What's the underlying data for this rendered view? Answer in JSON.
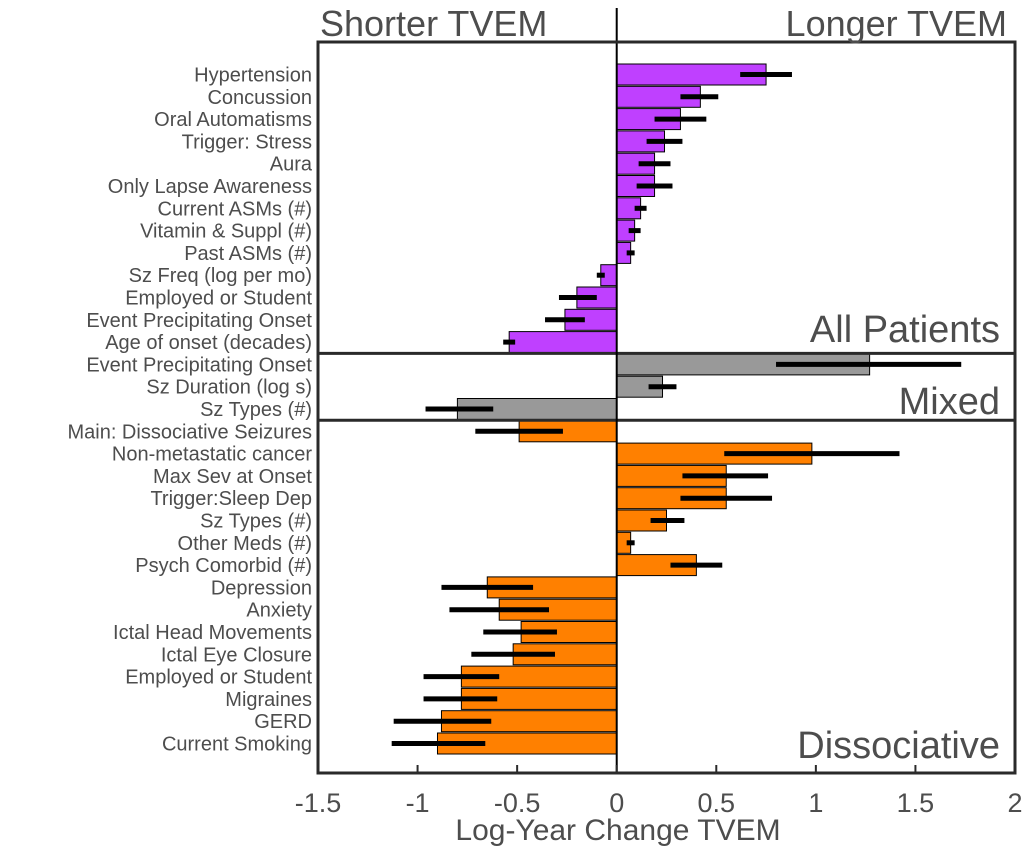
{
  "chart_data": {
    "type": "bar",
    "orientation": "horizontal",
    "xlabel": "Log-Year Change TVEM",
    "xlim": [
      -1.5,
      2
    ],
    "xticks": [
      "-1.5",
      "-1",
      "-0.5",
      "0",
      "0.5",
      "1",
      "1.5",
      "2"
    ],
    "header_left": "Shorter TVEM",
    "header_right": "Longer TVEM",
    "grid": false,
    "groups": [
      {
        "name": "All Patients",
        "color": "#bf40ff",
        "items": [
          {
            "label": "Hypertension",
            "value": 0.75,
            "err_low": 0.62,
            "err_high": 0.88
          },
          {
            "label": "Concussion",
            "value": 0.42,
            "err_low": 0.32,
            "err_high": 0.51
          },
          {
            "label": "Oral Automatisms",
            "value": 0.32,
            "err_low": 0.19,
            "err_high": 0.45
          },
          {
            "label": "Trigger: Stress",
            "value": 0.24,
            "err_low": 0.15,
            "err_high": 0.33
          },
          {
            "label": "Aura",
            "value": 0.19,
            "err_low": 0.11,
            "err_high": 0.27
          },
          {
            "label": "Only Lapse Awareness",
            "value": 0.19,
            "err_low": 0.1,
            "err_high": 0.28
          },
          {
            "label": "Current ASMs (#)",
            "value": 0.12,
            "err_low": 0.09,
            "err_high": 0.15
          },
          {
            "label": "Vitamin & Suppl (#)",
            "value": 0.09,
            "err_low": 0.06,
            "err_high": 0.12
          },
          {
            "label": "Past ASMs (#)",
            "value": 0.07,
            "err_low": 0.05,
            "err_high": 0.09
          },
          {
            "label": "Sz Freq (log per mo)",
            "value": -0.08,
            "err_low": -0.1,
            "err_high": -0.06
          },
          {
            "label": "Employed or Student",
            "value": -0.2,
            "err_low": -0.29,
            "err_high": -0.1
          },
          {
            "label": "Event Precipitating Onset",
            "value": -0.26,
            "err_low": -0.36,
            "err_high": -0.16
          },
          {
            "label": "Age of onset (decades)",
            "value": -0.54,
            "err_low": -0.57,
            "err_high": -0.51
          }
        ]
      },
      {
        "name": "Mixed",
        "color": "#999999",
        "items": [
          {
            "label": "Event Precipitating Onset",
            "value": 1.27,
            "err_low": 0.8,
            "err_high": 1.73
          },
          {
            "label": "Sz Duration (log s)",
            "value": 0.23,
            "err_low": 0.16,
            "err_high": 0.3
          },
          {
            "label": "Sz Types (#)",
            "value": -0.8,
            "err_low": -0.96,
            "err_high": -0.62
          }
        ]
      },
      {
        "name": "Dissociative",
        "color": "#ff8000",
        "items": [
          {
            "label": "Main: Dissociative Seizures",
            "value": -0.49,
            "err_low": -0.71,
            "err_high": -0.27
          },
          {
            "label": "Non-metastatic cancer",
            "value": 0.98,
            "err_low": 0.54,
            "err_high": 1.42
          },
          {
            "label": "Max Sev at Onset",
            "value": 0.55,
            "err_low": 0.33,
            "err_high": 0.76
          },
          {
            "label": "Trigger:Sleep Dep",
            "value": 0.55,
            "err_low": 0.32,
            "err_high": 0.78
          },
          {
            "label": "Sz Types (#)",
            "value": 0.25,
            "err_low": 0.17,
            "err_high": 0.34
          },
          {
            "label": "Other Meds (#)",
            "value": 0.07,
            "err_low": 0.05,
            "err_high": 0.09
          },
          {
            "label": "Psych Comorbid (#)",
            "value": 0.4,
            "err_low": 0.27,
            "err_high": 0.53
          },
          {
            "label": "Depression",
            "value": -0.65,
            "err_low": -0.88,
            "err_high": -0.42
          },
          {
            "label": "Anxiety",
            "value": -0.59,
            "err_low": -0.84,
            "err_high": -0.34
          },
          {
            "label": "Ictal Head Movements",
            "value": -0.48,
            "err_low": -0.67,
            "err_high": -0.3
          },
          {
            "label": "Ictal Eye Closure",
            "value": -0.52,
            "err_low": -0.73,
            "err_high": -0.31
          },
          {
            "label": "Employed or Student",
            "value": -0.78,
            "err_low": -0.97,
            "err_high": -0.59
          },
          {
            "label": "Migraines",
            "value": -0.78,
            "err_low": -0.97,
            "err_high": -0.6
          },
          {
            "label": "GERD",
            "value": -0.88,
            "err_low": -1.12,
            "err_high": -0.63
          },
          {
            "label": "Current Smoking",
            "value": -0.9,
            "err_low": -1.13,
            "err_high": -0.66
          }
        ]
      }
    ]
  }
}
